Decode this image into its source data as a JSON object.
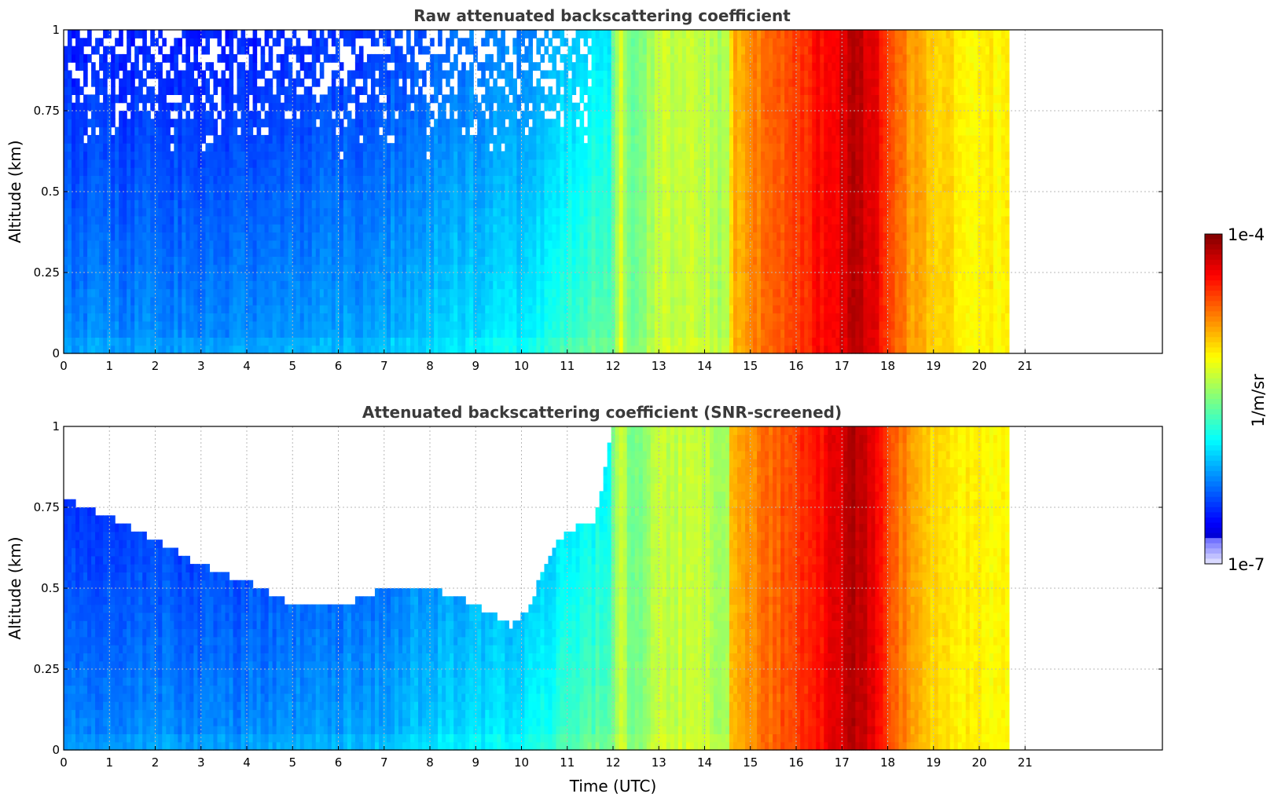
{
  "chart_data": [
    {
      "type": "heatmap",
      "title": "Raw attenuated backscattering coefficient",
      "xlabel": "",
      "ylabel": "Altitude (km)",
      "xlim": [
        0,
        24
      ],
      "ylim": [
        0,
        1
      ],
      "x_ticks": [
        "0",
        "1",
        "2",
        "3",
        "4",
        "5",
        "6",
        "7",
        "8",
        "9",
        "10",
        "11",
        "12",
        "13",
        "14",
        "15",
        "16",
        "17",
        "18",
        "19",
        "20",
        "21"
      ],
      "y_ticks": [
        "0",
        "0.25",
        "0.5",
        "0.75",
        "1"
      ],
      "y_tick_values": [
        0,
        0.25,
        0.5,
        0.75,
        1
      ],
      "grid": true,
      "data_time_range": [
        0,
        20.65
      ],
      "screened": false,
      "time_profile_log10": [
        [
          0,
          -6.2
        ],
        [
          4,
          -6.2
        ],
        [
          7,
          -6.1
        ],
        [
          8,
          -6.0
        ],
        [
          10,
          -5.9
        ],
        [
          11,
          -5.7
        ],
        [
          12,
          -5.55
        ],
        [
          12.15,
          -5.2
        ],
        [
          12.4,
          -5.6
        ],
        [
          13,
          -5.3
        ],
        [
          14,
          -5.3
        ],
        [
          14.5,
          -5.4
        ],
        [
          14.6,
          -4.9
        ],
        [
          15,
          -4.8
        ],
        [
          16,
          -4.55
        ],
        [
          16.5,
          -4.4
        ],
        [
          17,
          -4.3
        ],
        [
          17.2,
          -4.15
        ],
        [
          17.8,
          -4.35
        ],
        [
          18.2,
          -4.7
        ],
        [
          19,
          -5.0
        ],
        [
          20,
          -5.1
        ],
        [
          20.65,
          -5.1
        ]
      ]
    },
    {
      "type": "heatmap",
      "title": "Attenuated backscattering coefficient (SNR-screened)",
      "xlabel": "Time (UTC)",
      "ylabel": "Altitude (km)",
      "xlim": [
        0,
        24
      ],
      "ylim": [
        0,
        1
      ],
      "x_ticks": [
        "0",
        "1",
        "2",
        "3",
        "4",
        "5",
        "6",
        "7",
        "8",
        "9",
        "10",
        "11",
        "12",
        "13",
        "14",
        "15",
        "16",
        "17",
        "18",
        "19",
        "20",
        "21"
      ],
      "y_ticks": [
        "0",
        "0.25",
        "0.5",
        "0.75",
        "1"
      ],
      "y_tick_values": [
        0,
        0.25,
        0.5,
        0.75,
        1
      ],
      "grid": true,
      "data_time_range": [
        0,
        20.65
      ],
      "screened": true,
      "screen_boundary_km": [
        [
          0,
          0.78
        ],
        [
          0.5,
          0.75
        ],
        [
          1,
          0.72
        ],
        [
          2,
          0.65
        ],
        [
          3,
          0.57
        ],
        [
          4,
          0.52
        ],
        [
          5,
          0.45
        ],
        [
          6,
          0.44
        ],
        [
          7,
          0.5
        ],
        [
          8,
          0.5
        ],
        [
          9,
          0.45
        ],
        [
          9.8,
          0.38
        ],
        [
          10.2,
          0.45
        ],
        [
          10.6,
          0.6
        ],
        [
          11,
          0.68
        ],
        [
          11.6,
          0.7
        ],
        [
          12,
          1.0
        ]
      ],
      "time_profile_log10": [
        [
          0,
          -6.2
        ],
        [
          4,
          -6.2
        ],
        [
          7,
          -6.1
        ],
        [
          8,
          -6.0
        ],
        [
          10,
          -5.9
        ],
        [
          11,
          -5.7
        ],
        [
          12,
          -5.55
        ],
        [
          12.15,
          -5.2
        ],
        [
          12.4,
          -5.6
        ],
        [
          13,
          -5.3
        ],
        [
          14,
          -5.3
        ],
        [
          14.5,
          -5.4
        ],
        [
          14.6,
          -4.9
        ],
        [
          15,
          -4.8
        ],
        [
          16,
          -4.55
        ],
        [
          16.5,
          -4.4
        ],
        [
          17,
          -4.3
        ],
        [
          17.2,
          -4.15
        ],
        [
          17.8,
          -4.35
        ],
        [
          18.2,
          -4.7
        ],
        [
          19,
          -5.0
        ],
        [
          20,
          -5.1
        ],
        [
          20.65,
          -5.1
        ]
      ]
    }
  ],
  "colorbar": {
    "min_label": "1e-7",
    "max_label": "1e-4",
    "unit_label": "1/m/sr",
    "log10_range": [
      -7,
      -4
    ],
    "colormap": "jet"
  }
}
